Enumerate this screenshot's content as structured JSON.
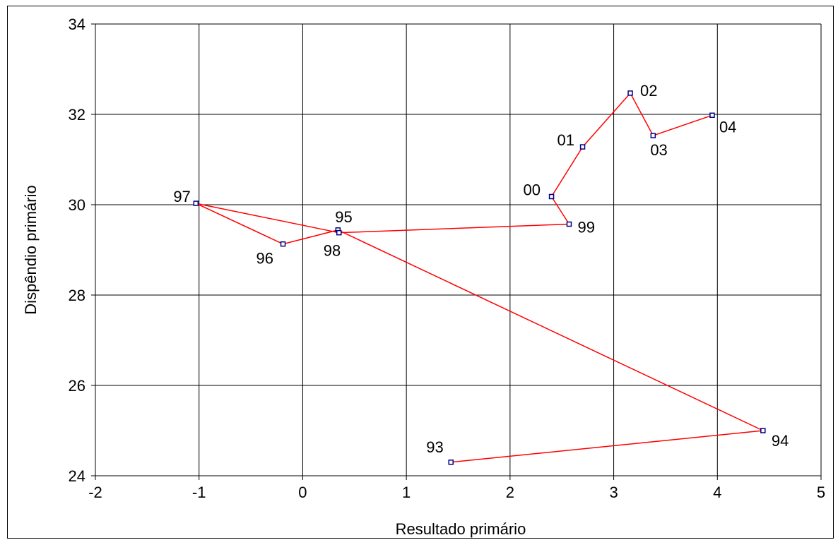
{
  "chart_data": {
    "type": "line",
    "xlabel": "Resultado primário",
    "ylabel": "Dispêndio primário",
    "xlim": [
      -2,
      5
    ],
    "ylim": [
      24,
      34
    ],
    "xticks": [
      -2,
      -1,
      0,
      1,
      2,
      3,
      4,
      5
    ],
    "yticks": [
      24,
      26,
      28,
      30,
      32,
      34
    ],
    "grid": true,
    "series": [
      {
        "color": "#ff0000",
        "marker_color": "#000080",
        "points": [
          {
            "label": "93",
            "x": 1.43,
            "y": 24.3
          },
          {
            "label": "94",
            "x": 4.44,
            "y": 25.0
          },
          {
            "label": "95",
            "x": 0.34,
            "y": 29.44
          },
          {
            "label": "96",
            "x": -0.19,
            "y": 29.13
          },
          {
            "label": "97",
            "x": -1.03,
            "y": 30.03
          },
          {
            "label": "98",
            "x": 0.35,
            "y": 29.38
          },
          {
            "label": "99",
            "x": 2.57,
            "y": 29.57
          },
          {
            "label": "00",
            "x": 2.4,
            "y": 30.18
          },
          {
            "label": "01",
            "x": 2.7,
            "y": 31.28
          },
          {
            "label": "02",
            "x": 3.16,
            "y": 32.47
          },
          {
            "label": "03",
            "x": 3.38,
            "y": 31.53
          },
          {
            "label": "04",
            "x": 3.95,
            "y": 31.98
          }
        ]
      }
    ]
  }
}
